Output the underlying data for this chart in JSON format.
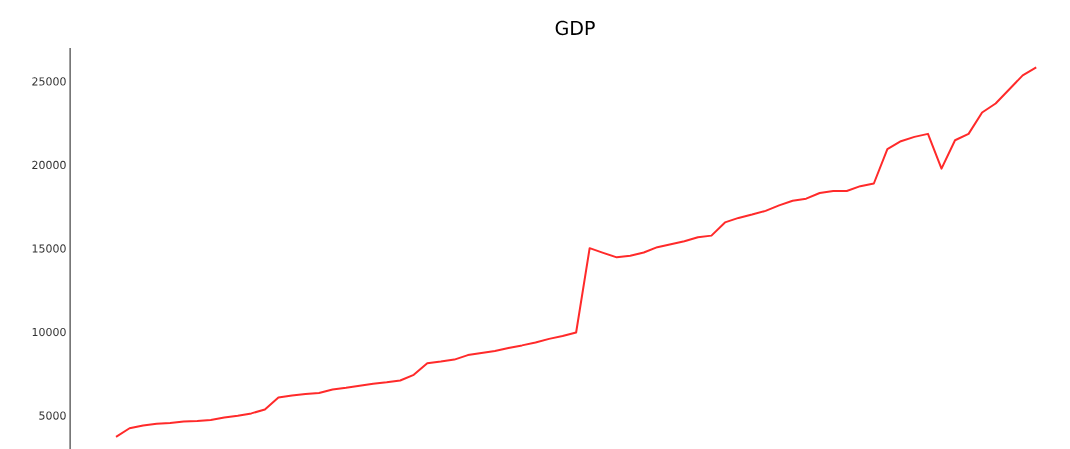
{
  "chart_data": {
    "type": "line",
    "title": "GDP",
    "categories": [
      null,
      null,
      null,
      null,
      null,
      null,
      null,
      null,
      null,
      null,
      null,
      null,
      null,
      null,
      null,
      null,
      null,
      null,
      null,
      null,
      null,
      null,
      null,
      null,
      null,
      null,
      null,
      null,
      null,
      null,
      null,
      null,
      null,
      null,
      null,
      null,
      null,
      null,
      null,
      null,
      null,
      null,
      null,
      null,
      null,
      null,
      null,
      null,
      null,
      null,
      null,
      null,
      null,
      null,
      null,
      null,
      null,
      null,
      null,
      null,
      null,
      null,
      null,
      null,
      null,
      null,
      null,
      null,
      null
    ],
    "values": [
      3730,
      4240,
      4410,
      4510,
      4550,
      4640,
      4680,
      4740,
      4880,
      4990,
      5130,
      5360,
      6080,
      6200,
      6290,
      6350,
      6560,
      6660,
      6780,
      6910,
      6990,
      7100,
      7440,
      8130,
      8230,
      8350,
      8620,
      8750,
      8870,
      9050,
      9200,
      9370,
      9590,
      9760,
      9970,
      15020,
      14740,
      14470,
      14560,
      14760,
      15080,
      15250,
      15430,
      15670,
      15770,
      16560,
      16830,
      17030,
      17250,
      17580,
      17860,
      17980,
      18320,
      18440,
      18440,
      18730,
      18890,
      20950,
      21420,
      21680,
      21860,
      19780,
      21480,
      21860,
      23140,
      23680,
      24520,
      25360,
      25840
    ],
    "color": "#ff2a2a",
    "ylim": [
      3000,
      27000
    ],
    "yticks": [
      5000,
      10000,
      15000,
      20000,
      25000
    ],
    "tick_labels": "y"
  }
}
